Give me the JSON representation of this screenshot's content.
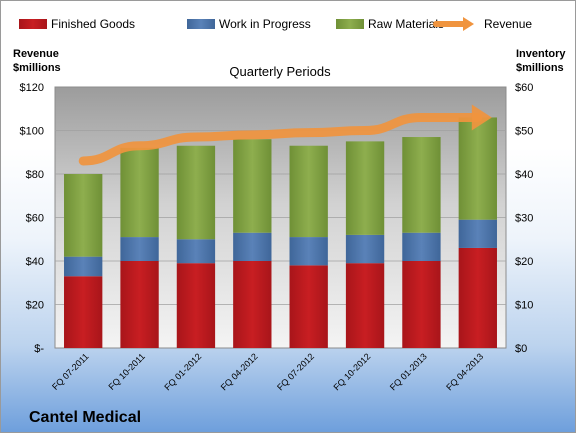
{
  "chart_data": {
    "type": "bar",
    "title": "Quarterly Periods",
    "company": "Cantel Medical",
    "categories": [
      "FQ 07-2011",
      "FQ 10-2011",
      "FQ 01-2012",
      "FQ 04-2012",
      "FQ 07-2012",
      "FQ 10-2012",
      "FQ 01-2013",
      "FQ 04-2013"
    ],
    "series": [
      {
        "name": "Finished Goods",
        "axis": "right",
        "color": "#c0191b",
        "values": [
          16.5,
          20,
          19.5,
          20,
          19,
          19.5,
          20,
          23
        ]
      },
      {
        "name": "Work in Progress",
        "axis": "right",
        "color": "#4f77ad",
        "values": [
          4.5,
          5.5,
          5.5,
          6.5,
          6.5,
          6.5,
          6.5,
          6.5
        ]
      },
      {
        "name": "Raw Materials",
        "axis": "right",
        "color": "#83a244",
        "values": [
          19,
          20.5,
          21.5,
          21.5,
          21,
          21.5,
          22,
          23.5
        ]
      },
      {
        "name": "Revenue",
        "axis": "left",
        "type": "line",
        "color": "#f0943e",
        "values": [
          86,
          93,
          97,
          98,
          99,
          100,
          106,
          106
        ]
      }
    ],
    "y_left": {
      "label_line1": "Revenue",
      "label_line2": "$millions",
      "min": 0,
      "max": 120,
      "ticks": [
        "$-",
        "$20",
        "$40",
        "$60",
        "$80",
        "$100",
        "$120"
      ]
    },
    "y_right": {
      "label_line1": "Inventory",
      "label_line2": "$millions",
      "min": 0,
      "max": 60,
      "ticks": [
        "$0",
        "$10",
        "$20",
        "$30",
        "$40",
        "$50",
        "$60"
      ]
    },
    "legend_position": "top",
    "grid": true
  }
}
